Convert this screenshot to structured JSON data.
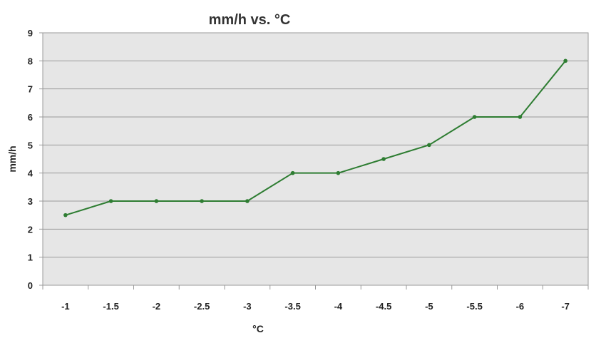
{
  "chart_data": {
    "type": "line",
    "title": "mm/h vs.  °C",
    "xlabel": "°C",
    "ylabel": "mm/h",
    "categories": [
      "-1",
      "-1.5",
      "-2",
      "-2.5",
      "-3",
      "-3.5",
      "-4",
      "-4.5",
      "-5",
      "-5.5",
      "-6",
      "-7"
    ],
    "series": [
      {
        "values": [
          2.5,
          3,
          3,
          3,
          3,
          4,
          4,
          4.5,
          5,
          6,
          6,
          8
        ]
      }
    ],
    "ylim": [
      0,
      9
    ],
    "yticks": [
      "0",
      "1",
      "2",
      "3",
      "4",
      "5",
      "6",
      "7",
      "8",
      "9"
    ],
    "grid": true,
    "legend": "none",
    "colors": {
      "line": "#2e7d32",
      "marker": "#2e7d32",
      "plot_background": "#e6e6e6",
      "gridline": "#9a9a9a",
      "axis": "#999999"
    }
  }
}
